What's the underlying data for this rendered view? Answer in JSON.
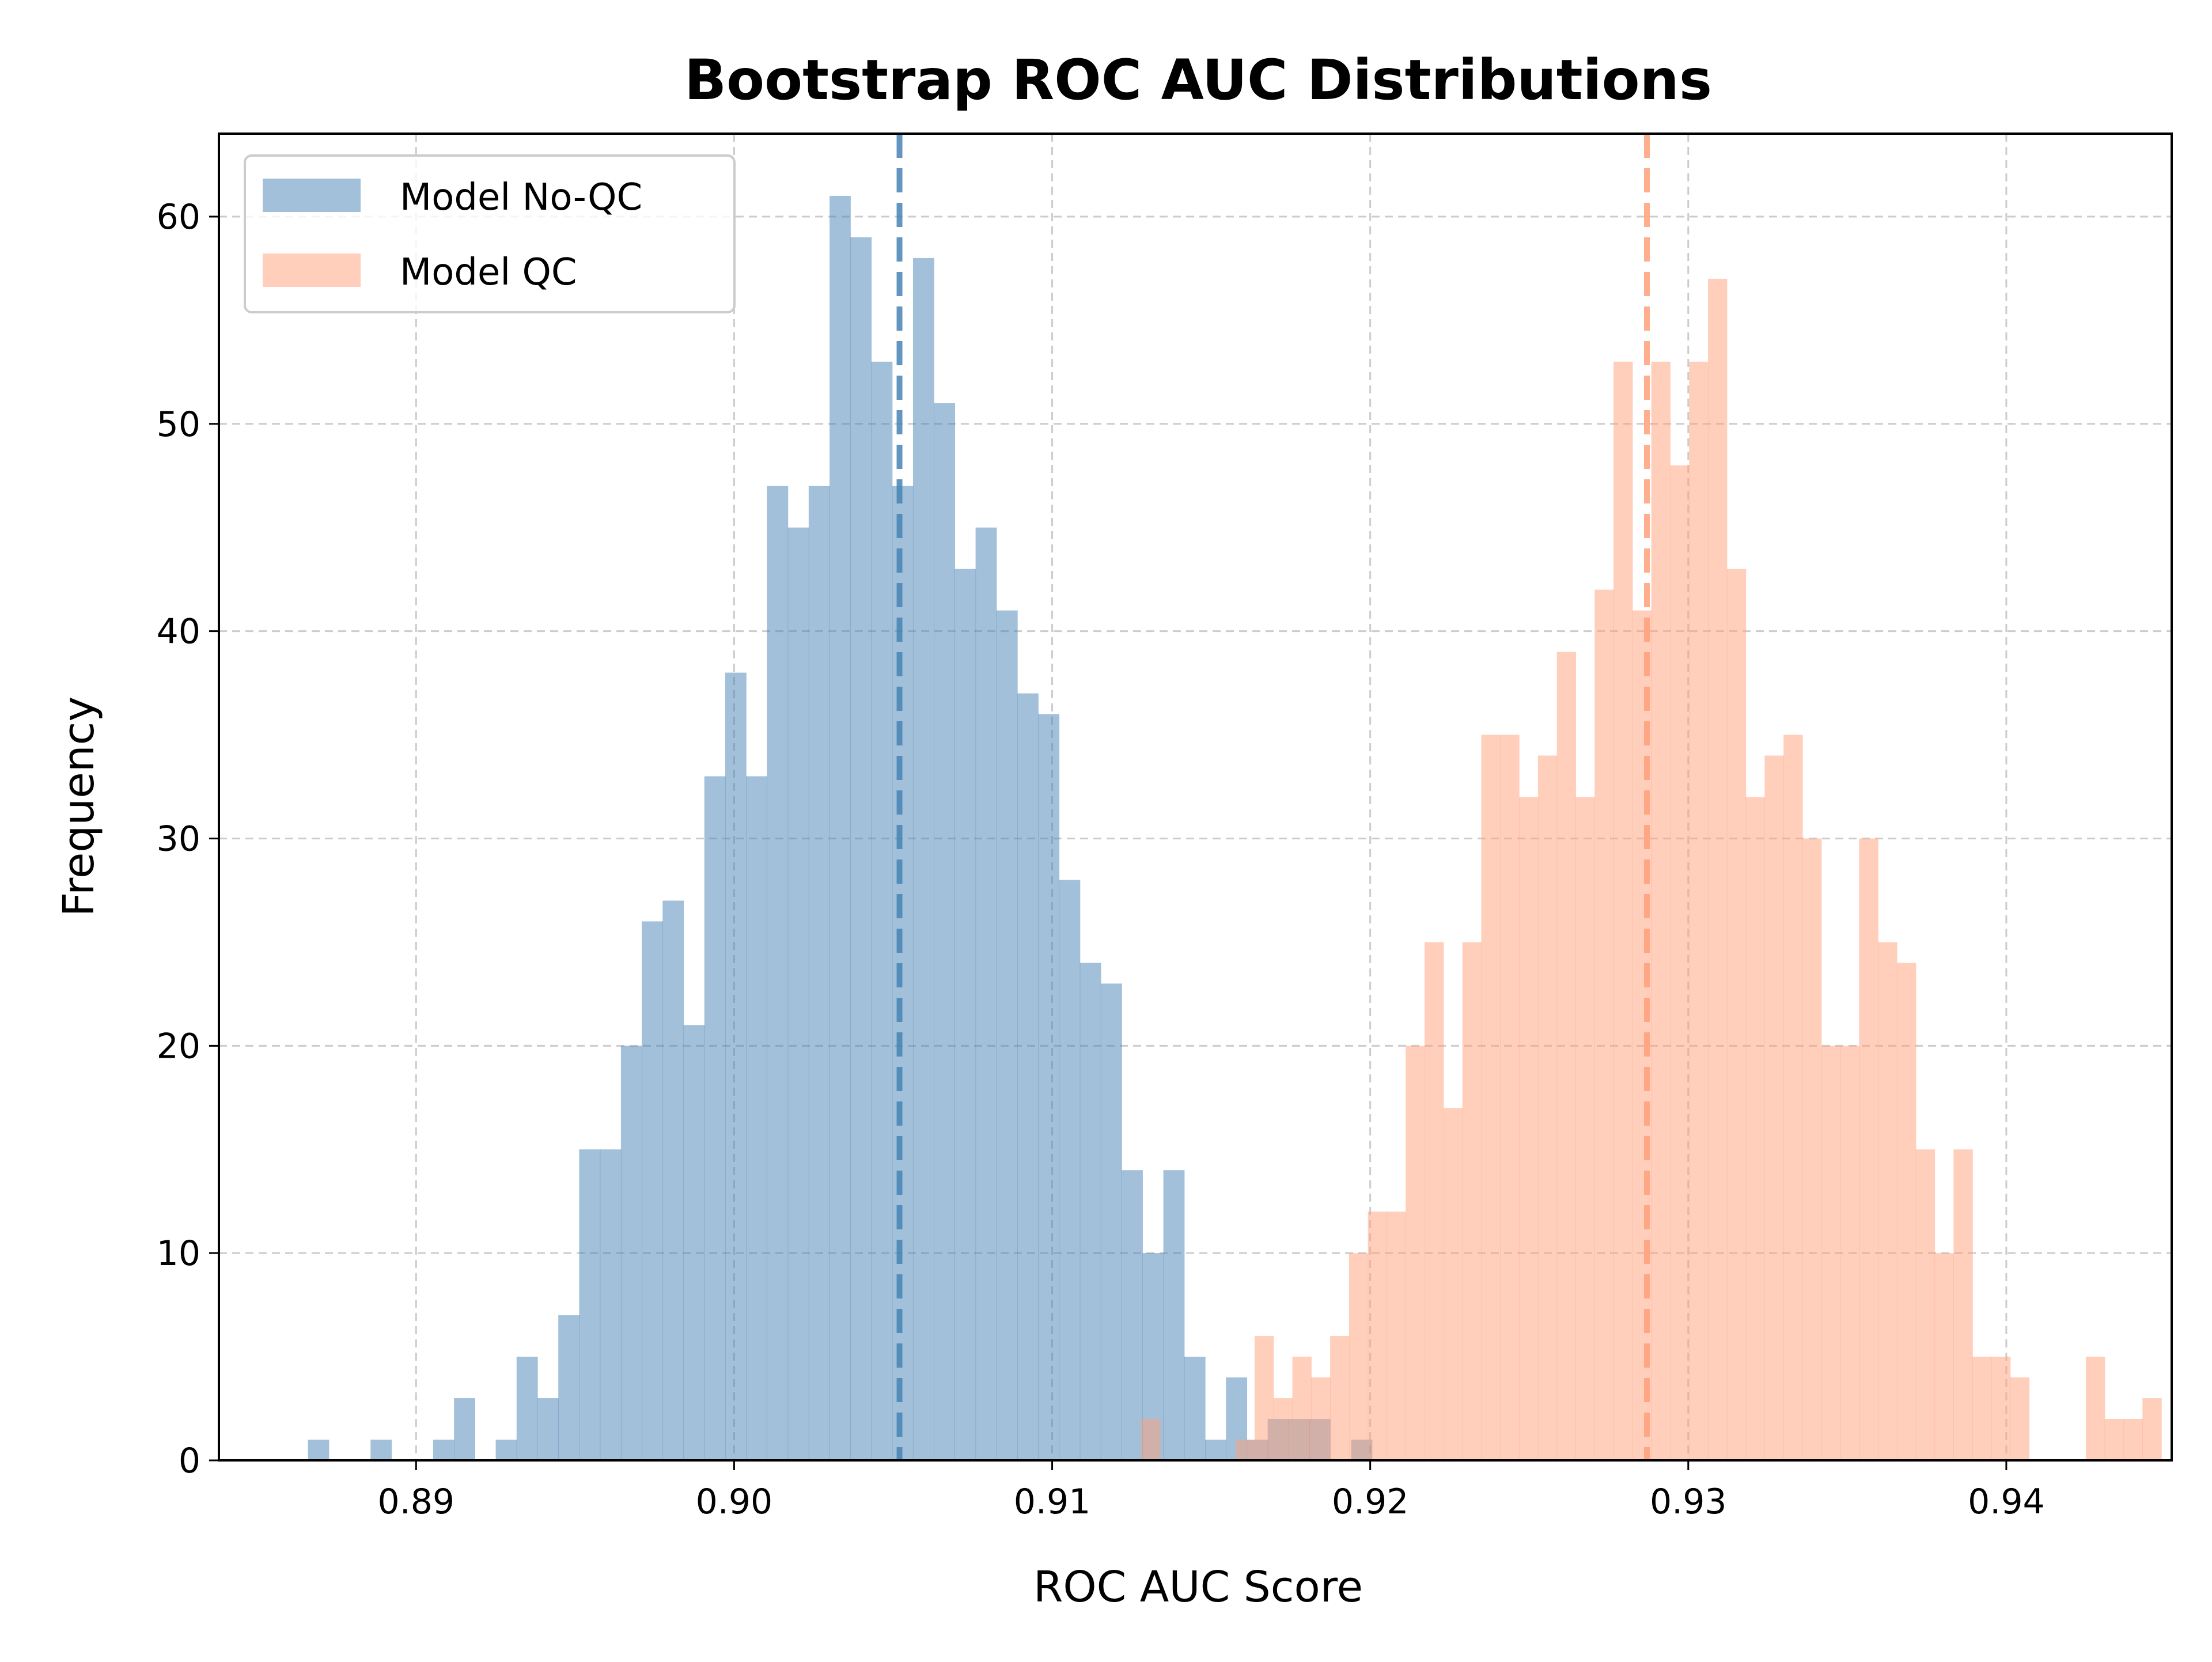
{
  "chart_data": {
    "type": "bar",
    "title": "Bootstrap ROC AUC Distributions",
    "xlabel": "ROC AUC Score",
    "ylabel": "Frequency",
    "xlim": [
      0.8838,
      0.9452
    ],
    "ylim": [
      0,
      64
    ],
    "xticks": [
      0.89,
      0.9,
      0.91,
      0.92,
      0.93,
      0.94
    ],
    "xtick_labels": [
      "0.89",
      "0.90",
      "0.91",
      "0.92",
      "0.93",
      "0.94"
    ],
    "yticks": [
      0,
      10,
      20,
      30,
      40,
      50,
      60
    ],
    "ytick_labels": [
      "0",
      "10",
      "20",
      "30",
      "40",
      "50",
      "60"
    ],
    "grid": true,
    "legend_position": "top-left",
    "series": [
      {
        "name": "Model No-QC",
        "color": "#4682b4",
        "mean": 0.9052,
        "bin_start": 0.8866,
        "bin_width": 0.000656,
        "values": [
          1,
          0,
          0,
          1,
          0,
          0,
          1,
          3,
          0,
          1,
          5,
          3,
          7,
          15,
          15,
          20,
          26,
          27,
          21,
          33,
          38,
          33,
          47,
          45,
          47,
          61,
          59,
          53,
          47,
          58,
          51,
          43,
          45,
          41,
          37,
          36,
          28,
          24,
          23,
          14,
          10,
          14,
          5,
          1,
          4,
          1,
          2,
          2,
          2,
          0,
          1
        ]
      },
      {
        "name": "Model QC",
        "color": "#ffa07a",
        "mean": 0.9287,
        "bin_start": 0.9128,
        "bin_width": 0.000594,
        "values": [
          2,
          0,
          0,
          0,
          0,
          1,
          6,
          3,
          5,
          4,
          6,
          10,
          12,
          12,
          20,
          25,
          17,
          25,
          35,
          35,
          32,
          34,
          39,
          32,
          42,
          53,
          41,
          53,
          48,
          53,
          57,
          43,
          32,
          34,
          35,
          30,
          20,
          20,
          30,
          25,
          24,
          15,
          10,
          15,
          5,
          5,
          4,
          0,
          0,
          0,
          5,
          2,
          2,
          3
        ]
      }
    ]
  }
}
